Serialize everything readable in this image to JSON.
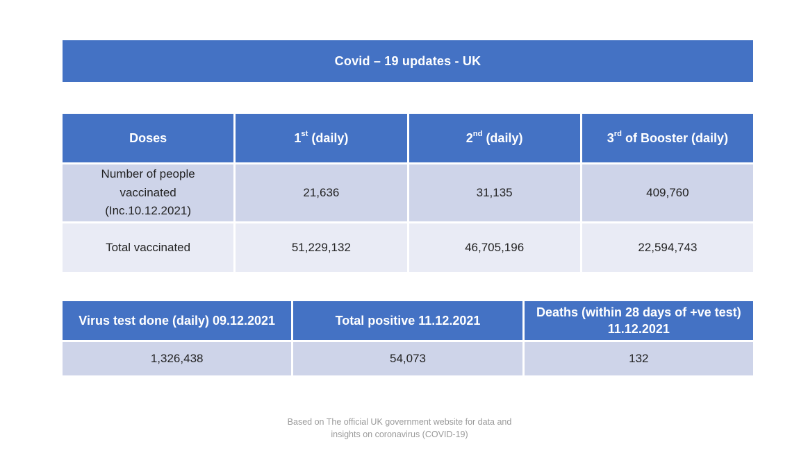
{
  "slide": {
    "title": "Covid – 19 updates - UK",
    "colors": {
      "header_blue": "#4472C4",
      "band_dark": "#CED4E9",
      "band_light": "#E9EBF5",
      "header_text": "#FFFFFF",
      "body_text": "#222222",
      "note_text": "#9A9A9A",
      "background": "#FFFFFF"
    },
    "vaccine_table": {
      "headers": [
        {
          "base": "Doses",
          "sup": "",
          "rest": ""
        },
        {
          "base": "1",
          "sup": "st",
          "rest": " (daily)"
        },
        {
          "base": "2",
          "sup": "nd",
          "rest": " (daily)"
        },
        {
          "base": "3",
          "sup": "rd",
          "rest": " of Booster (daily)"
        }
      ],
      "rows": [
        {
          "label": "Number of people\nvaccinated\n(Inc.10.12.2021)",
          "values": [
            "21,636",
            "31,135",
            "409,760"
          ]
        },
        {
          "label": "Total vaccinated",
          "values": [
            "51,229,132",
            "46,705,196",
            "22,594,743"
          ]
        }
      ]
    },
    "test_table": {
      "headers": [
        "Virus test done (daily) 09.12.2021",
        "Total positive 11.12.2021",
        "Deaths (within 28 days of +ve test)\n11.12.2021"
      ],
      "values": [
        "1,326,438",
        "54,073",
        "132"
      ]
    },
    "source_note": "Based on The official UK government website for data and\ninsights on coronavirus (COVID-19)"
  }
}
